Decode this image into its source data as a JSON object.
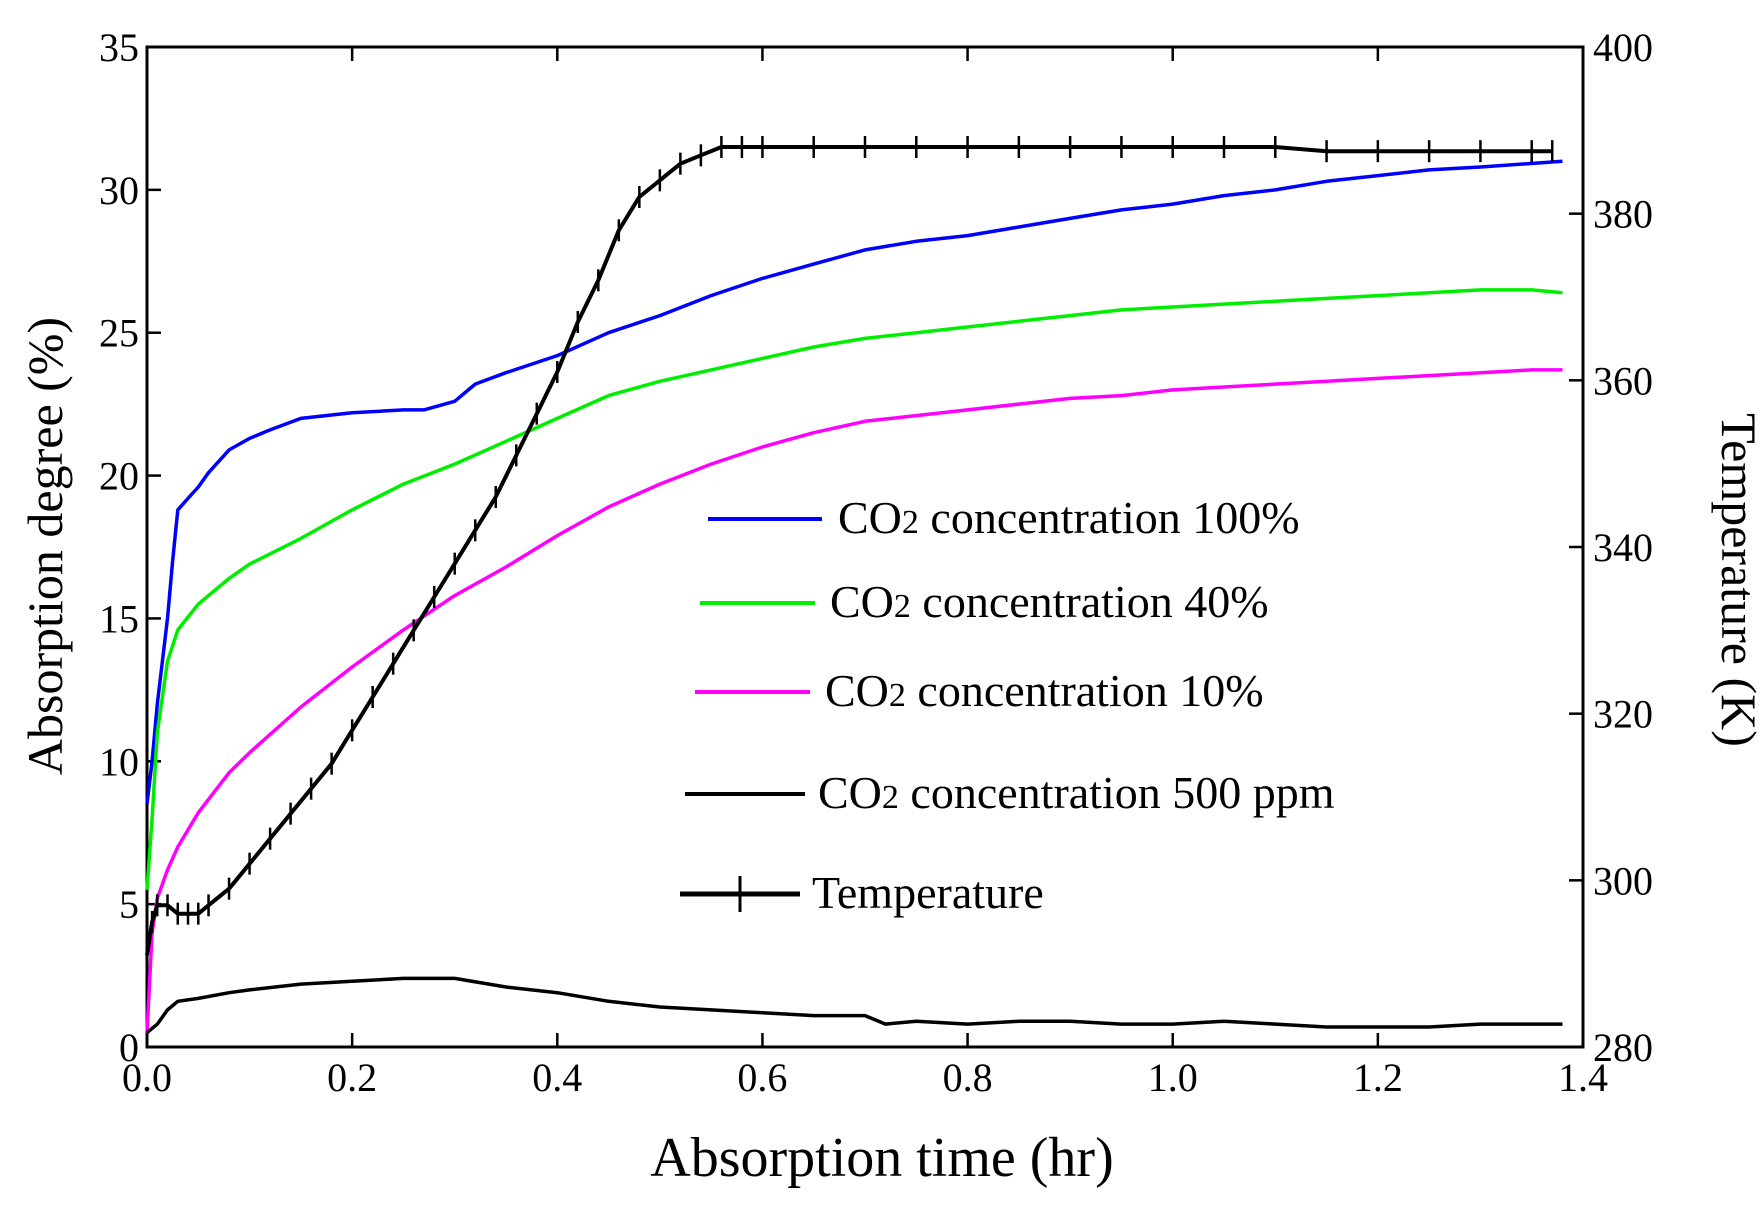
{
  "chart_data": {
    "type": "line",
    "xlabel": "Absorption time (hr)",
    "ylabel": "Absorption degree (%)",
    "y2label": "Temperature (K)",
    "xlim": [
      0,
      1.4
    ],
    "ylim": [
      0,
      35
    ],
    "y2lim": [
      280,
      400
    ],
    "xticks": [
      0,
      0.2,
      0.4,
      0.6,
      0.8,
      1.0,
      1.2,
      1.4
    ],
    "xtick_labels": [
      "0.0",
      "0.2",
      "0.4",
      "0.6",
      "0.8",
      "1.0",
      "1.2",
      "1.4"
    ],
    "yticks": [
      0,
      5,
      10,
      15,
      20,
      25,
      30,
      35
    ],
    "ytick_labels": [
      "0",
      "5",
      "10",
      "15",
      "20",
      "25",
      "30",
      "35"
    ],
    "y2ticks": [
      280,
      300,
      320,
      340,
      360,
      380,
      400
    ],
    "y2tick_labels": [
      "280",
      "300",
      "320",
      "340",
      "360",
      "380",
      "400"
    ],
    "grid": false,
    "legend_position": "center-right",
    "series": [
      {
        "name": "CO2 concentration 100%",
        "legend_main": "CO",
        "legend_sub": "2",
        "legend_rest": " concentration 100%",
        "color": "#0000ff",
        "axis": "left",
        "x": [
          0,
          0.005,
          0.01,
          0.02,
          0.025,
          0.03,
          0.04,
          0.05,
          0.06,
          0.08,
          0.1,
          0.12,
          0.15,
          0.2,
          0.25,
          0.27,
          0.3,
          0.32,
          0.35,
          0.4,
          0.45,
          0.5,
          0.55,
          0.6,
          0.65,
          0.7,
          0.75,
          0.8,
          0.85,
          0.9,
          0.95,
          1.0,
          1.05,
          1.1,
          1.15,
          1.2,
          1.25,
          1.3,
          1.38
        ],
        "y": [
          8.5,
          10,
          12,
          15,
          17,
          18.8,
          19.2,
          19.6,
          20.1,
          20.9,
          21.3,
          21.6,
          22.0,
          22.2,
          22.3,
          22.3,
          22.6,
          23.2,
          23.6,
          24.2,
          25.0,
          25.6,
          26.3,
          26.9,
          27.4,
          27.9,
          28.2,
          28.4,
          28.7,
          29.0,
          29.3,
          29.5,
          29.8,
          30.0,
          30.3,
          30.5,
          30.7,
          30.8,
          31.0
        ]
      },
      {
        "name": "CO2 concentration 40%",
        "legend_main": "CO",
        "legend_sub": "2",
        "legend_rest": " concentration 40%",
        "color": "#00ee00",
        "axis": "left",
        "x": [
          0,
          0.005,
          0.01,
          0.02,
          0.03,
          0.05,
          0.08,
          0.1,
          0.15,
          0.2,
          0.25,
          0.3,
          0.35,
          0.4,
          0.45,
          0.5,
          0.55,
          0.6,
          0.65,
          0.7,
          0.75,
          0.8,
          0.85,
          0.9,
          0.95,
          1.0,
          1.05,
          1.1,
          1.15,
          1.2,
          1.25,
          1.3,
          1.35,
          1.38
        ],
        "y": [
          5.5,
          8,
          11,
          13.5,
          14.6,
          15.5,
          16.4,
          16.9,
          17.8,
          18.8,
          19.7,
          20.4,
          21.2,
          22.0,
          22.8,
          23.3,
          23.7,
          24.1,
          24.5,
          24.8,
          25.0,
          25.2,
          25.4,
          25.6,
          25.8,
          25.9,
          26.0,
          26.1,
          26.2,
          26.3,
          26.4,
          26.5,
          26.5,
          26.4
        ]
      },
      {
        "name": "CO2 concentration 10%",
        "legend_main": "CO",
        "legend_sub": "2",
        "legend_rest": " concentration 10%",
        "color": "#ff00ff",
        "axis": "left",
        "x": [
          0,
          0.005,
          0.01,
          0.02,
          0.03,
          0.05,
          0.08,
          0.1,
          0.15,
          0.2,
          0.25,
          0.3,
          0.35,
          0.4,
          0.45,
          0.5,
          0.55,
          0.6,
          0.65,
          0.7,
          0.75,
          0.8,
          0.85,
          0.9,
          0.95,
          1.0,
          1.05,
          1.1,
          1.15,
          1.2,
          1.25,
          1.3,
          1.35,
          1.38
        ],
        "y": [
          0.5,
          4,
          5.2,
          6.2,
          7.0,
          8.2,
          9.6,
          10.3,
          11.9,
          13.3,
          14.6,
          15.8,
          16.8,
          17.9,
          18.9,
          19.7,
          20.4,
          21.0,
          21.5,
          21.9,
          22.1,
          22.3,
          22.5,
          22.7,
          22.8,
          23.0,
          23.1,
          23.2,
          23.3,
          23.4,
          23.5,
          23.6,
          23.7,
          23.7
        ]
      },
      {
        "name": "CO2 concentration 500 ppm",
        "legend_main": "CO",
        "legend_sub": "2",
        "legend_rest": " concentration 500 ppm",
        "color": "#000000",
        "axis": "left",
        "x": [
          0,
          0.01,
          0.02,
          0.03,
          0.05,
          0.08,
          0.1,
          0.15,
          0.2,
          0.25,
          0.3,
          0.35,
          0.4,
          0.45,
          0.5,
          0.55,
          0.6,
          0.65,
          0.7,
          0.72,
          0.75,
          0.8,
          0.85,
          0.9,
          0.95,
          1.0,
          1.05,
          1.1,
          1.15,
          1.2,
          1.25,
          1.3,
          1.35,
          1.38
        ],
        "y": [
          0.5,
          0.8,
          1.3,
          1.6,
          1.7,
          1.9,
          2.0,
          2.2,
          2.3,
          2.4,
          2.4,
          2.1,
          1.9,
          1.6,
          1.4,
          1.3,
          1.2,
          1.1,
          1.1,
          0.8,
          0.9,
          0.8,
          0.9,
          0.9,
          0.8,
          0.8,
          0.9,
          0.8,
          0.7,
          0.7,
          0.7,
          0.8,
          0.8,
          0.8
        ]
      },
      {
        "name": "Temperature",
        "legend_main": "Temperature",
        "legend_sub": "",
        "legend_rest": "",
        "color": "#000000",
        "axis": "right",
        "markers": "plus",
        "x": [
          0,
          0.005,
          0.01,
          0.02,
          0.03,
          0.04,
          0.05,
          0.06,
          0.08,
          0.1,
          0.12,
          0.14,
          0.16,
          0.18,
          0.2,
          0.22,
          0.24,
          0.26,
          0.28,
          0.3,
          0.32,
          0.34,
          0.36,
          0.38,
          0.4,
          0.42,
          0.44,
          0.46,
          0.48,
          0.5,
          0.52,
          0.54,
          0.56,
          0.58,
          0.6,
          0.65,
          0.7,
          0.75,
          0.8,
          0.85,
          0.9,
          0.95,
          1.0,
          1.05,
          1.1,
          1.15,
          1.2,
          1.25,
          1.3,
          1.35,
          1.37
        ],
        "y": [
          291,
          295,
          297,
          297,
          296,
          296,
          296,
          297,
          299,
          302,
          305,
          308,
          311,
          314,
          318,
          322,
          326,
          330,
          334,
          338,
          342,
          346,
          351,
          356,
          361,
          367,
          372,
          378,
          382,
          384,
          386,
          387,
          388,
          388,
          388,
          388,
          388,
          388,
          388,
          388,
          388,
          388,
          388,
          388,
          388,
          387.5,
          387.5,
          387.5,
          387.5,
          387.5,
          387.5
        ]
      }
    ]
  }
}
